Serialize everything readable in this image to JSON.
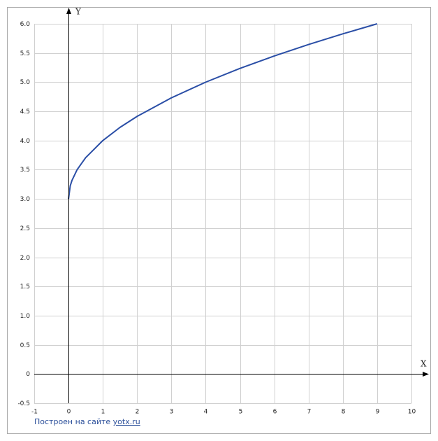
{
  "chart_data": {
    "type": "line",
    "x_label": "X",
    "y_label": "Y",
    "x": [
      0,
      0.05,
      0.1,
      0.25,
      0.5,
      1,
      1.5,
      2,
      3,
      4,
      5,
      6,
      7,
      8,
      9
    ],
    "series": [
      {
        "color": "#2a4ea6",
        "values": [
          3,
          3.224,
          3.316,
          3.5,
          3.707,
          4,
          4.225,
          4.414,
          4.732,
          5,
          5.236,
          5.449,
          5.646,
          5.828,
          6
        ]
      }
    ],
    "xlim": [
      -1,
      10
    ],
    "ylim": [
      -0.5,
      6
    ],
    "xticks": [
      -1,
      0,
      1,
      2,
      3,
      4,
      5,
      6,
      7,
      8,
      9,
      10
    ],
    "yticks": [
      -0.5,
      0,
      0.5,
      {
        "value": 1,
        "label": "1.0"
      },
      1.5,
      {
        "value": 2,
        "label": "2.0"
      },
      2.5,
      {
        "value": 3,
        "label": "3.0"
      },
      3.5,
      {
        "value": 4,
        "label": "4.0"
      },
      4.5,
      {
        "value": 5,
        "label": "5.0"
      },
      5.5,
      {
        "value": 6,
        "label": "6.0"
      }
    ],
    "grid": true
  },
  "footer": {
    "text": "Построен на сайте",
    "link": "yotx.ru"
  }
}
